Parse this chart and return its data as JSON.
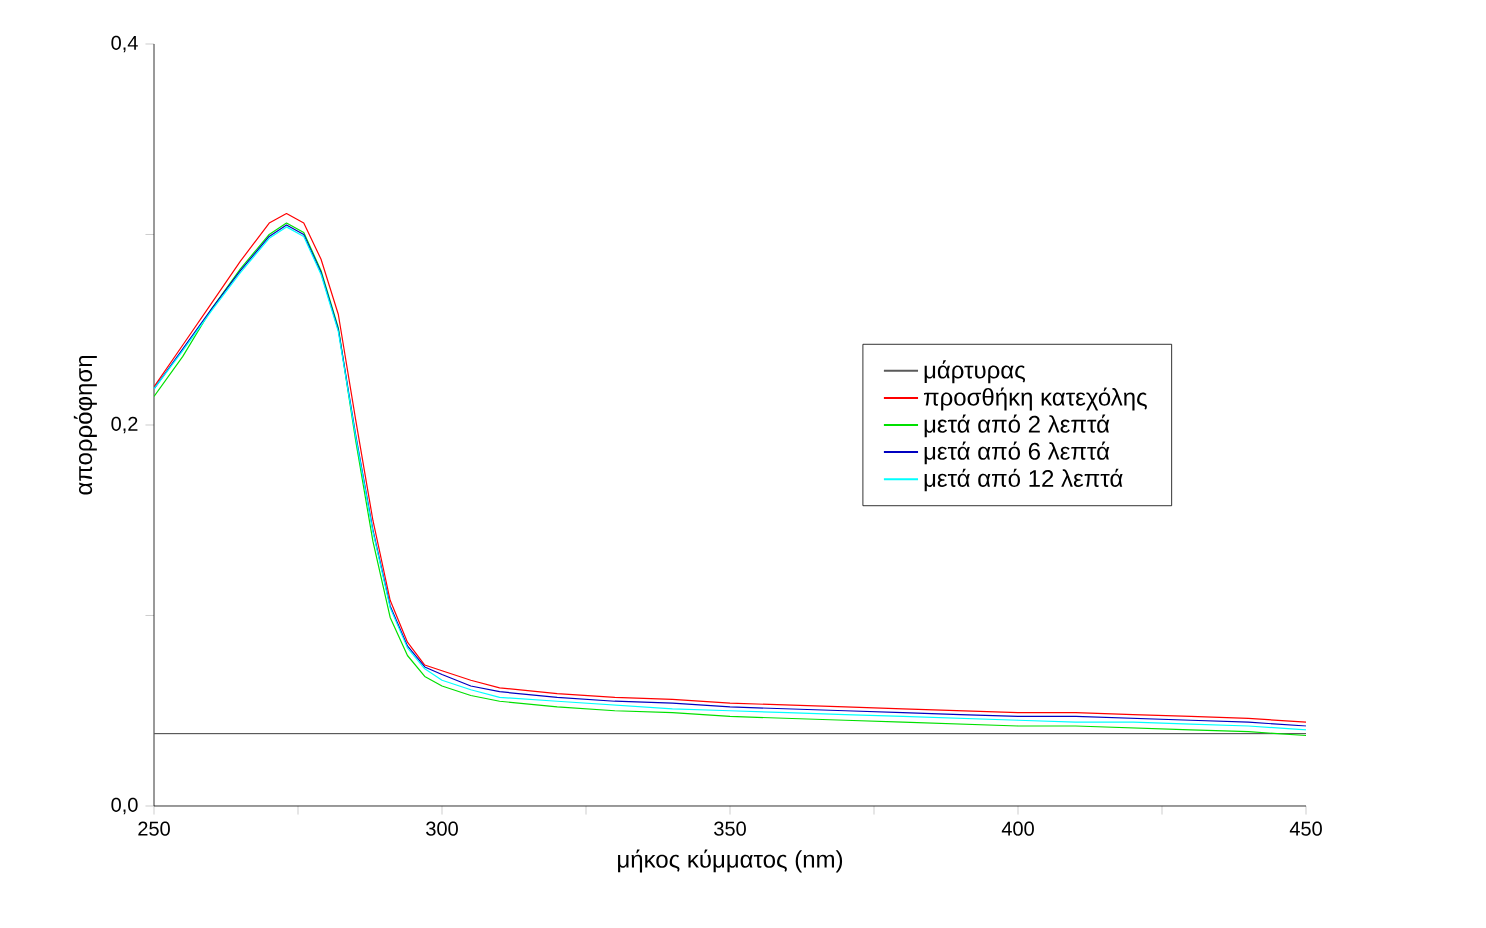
{
  "chart_data": {
    "type": "line",
    "xlabel": "μήκος κύμματος (nm)",
    "ylabel": "απορρόφηση",
    "x": [
      250,
      255,
      260,
      265,
      270,
      273,
      276,
      279,
      282,
      285,
      288,
      291,
      294,
      297,
      300,
      305,
      310,
      320,
      330,
      340,
      350,
      360,
      370,
      380,
      390,
      400,
      410,
      420,
      430,
      440,
      450
    ],
    "series": [
      {
        "name": "μάρτυρας",
        "color": "#5a5a5a",
        "x": [
          250,
          450
        ],
        "values": [
          0.038,
          0.038
        ]
      },
      {
        "name": "προσθήκη κατεχόλης",
        "color": "#ff0000",
        "values": [
          0.22,
          0.242,
          0.264,
          0.286,
          0.306,
          0.311,
          0.306,
          0.287,
          0.258,
          0.203,
          0.15,
          0.108,
          0.086,
          0.074,
          0.071,
          0.066,
          0.062,
          0.059,
          0.057,
          0.056,
          0.054,
          0.053,
          0.052,
          0.051,
          0.05,
          0.049,
          0.049,
          0.048,
          0.047,
          0.046,
          0.044
        ]
      },
      {
        "name": "μετά από 2 λεπτά",
        "color": "#00e000",
        "values": [
          0.215,
          0.236,
          0.261,
          0.282,
          0.3,
          0.306,
          0.301,
          0.281,
          0.251,
          0.192,
          0.139,
          0.099,
          0.079,
          0.068,
          0.063,
          0.058,
          0.055,
          0.052,
          0.05,
          0.049,
          0.047,
          0.046,
          0.045,
          0.044,
          0.043,
          0.042,
          0.042,
          0.041,
          0.04,
          0.039,
          0.037
        ]
      },
      {
        "name": "μετά από 6 λεπτά",
        "color": "#0000c0",
        "values": [
          0.219,
          0.24,
          0.261,
          0.281,
          0.299,
          0.305,
          0.3,
          0.28,
          0.25,
          0.195,
          0.145,
          0.105,
          0.084,
          0.073,
          0.069,
          0.063,
          0.06,
          0.057,
          0.055,
          0.054,
          0.052,
          0.051,
          0.05,
          0.049,
          0.048,
          0.047,
          0.047,
          0.046,
          0.045,
          0.044,
          0.042
        ]
      },
      {
        "name": "μετά από 12 λεπτά",
        "color": "#00ffff",
        "values": [
          0.219,
          0.239,
          0.26,
          0.28,
          0.298,
          0.304,
          0.299,
          0.279,
          0.249,
          0.194,
          0.144,
          0.104,
          0.083,
          0.072,
          0.066,
          0.061,
          0.057,
          0.055,
          0.053,
          0.051,
          0.05,
          0.049,
          0.048,
          0.047,
          0.046,
          0.045,
          0.044,
          0.044,
          0.043,
          0.042,
          0.04
        ]
      }
    ],
    "xlim": [
      250,
      450
    ],
    "xticks": [
      250,
      {
        "value": 275,
        "label": null
      },
      300,
      {
        "value": 325,
        "label": null
      },
      350,
      {
        "value": 375,
        "label": null
      },
      400,
      {
        "value": 425,
        "label": null
      },
      450
    ],
    "ylim": [
      0,
      0.4
    ],
    "yticks": [
      {
        "value": 0,
        "label": "0,0"
      },
      {
        "value": 0.1,
        "label": null
      },
      {
        "value": 0.2,
        "label": "0,2"
      },
      {
        "value": 0.3,
        "label": null
      },
      {
        "value": 0.4,
        "label": "0,4"
      }
    ],
    "legend": "right",
    "grid": false,
    "line_style": "solid",
    "marker": "none"
  }
}
